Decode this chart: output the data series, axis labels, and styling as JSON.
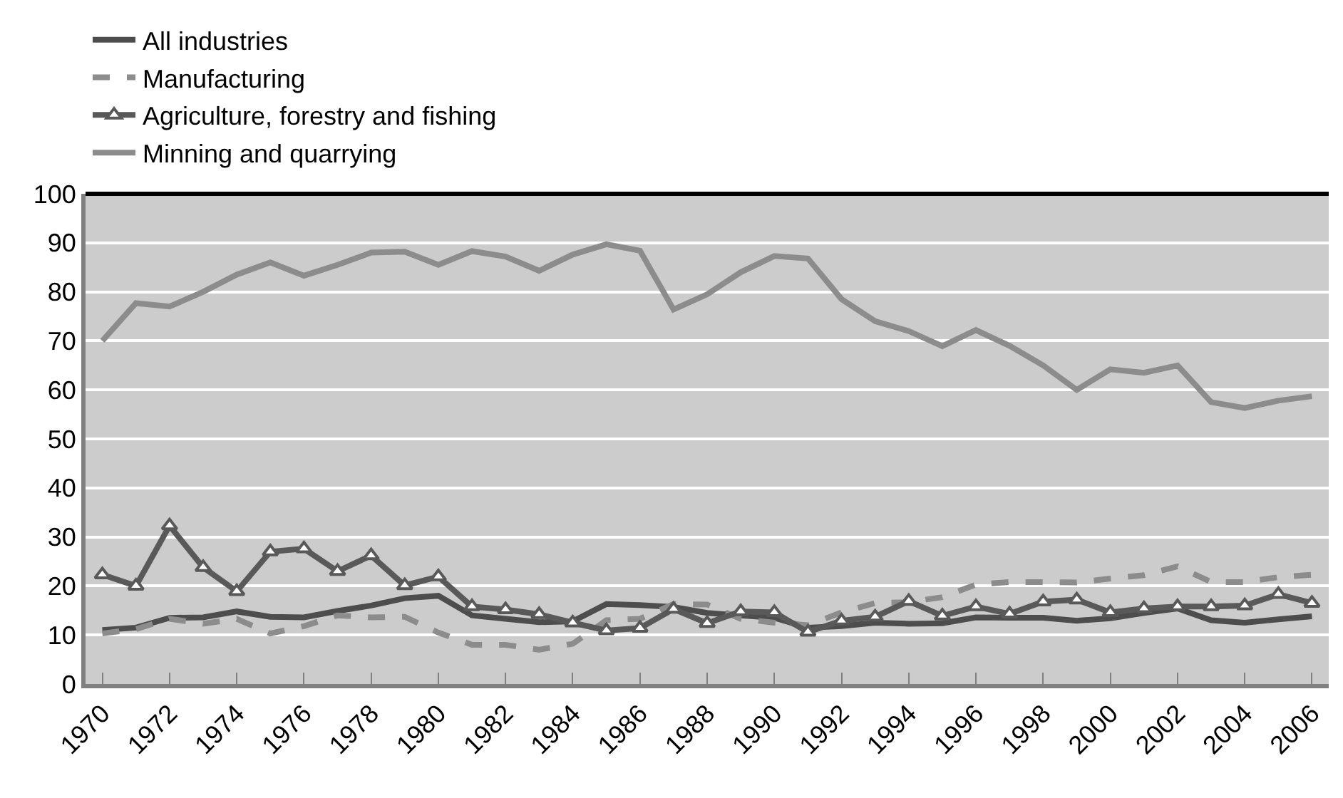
{
  "chart_data": {
    "type": "line",
    "categories": [
      "1970",
      null,
      "1972",
      null,
      "1974",
      null,
      "1976",
      null,
      "1978",
      null,
      "1980",
      null,
      "1982",
      null,
      "1984",
      null,
      "1986",
      null,
      "1988",
      null,
      "1990",
      null,
      "1992",
      null,
      "1994",
      null,
      "1996",
      null,
      "1998",
      null,
      "2000",
      null,
      "2002",
      null,
      "2004",
      null,
      "2006"
    ],
    "series": [
      {
        "name": "All industries",
        "color": "#4d4d4d",
        "line_style": "solid",
        "marker": "none",
        "values": [
          11,
          11.5,
          13.5,
          13.6,
          14.8,
          13.7,
          13.6,
          14.9,
          16.0,
          17.5,
          18,
          14,
          13.3,
          12.6,
          12.8,
          16.3,
          16.1,
          15.7,
          14.5,
          14,
          13.5,
          11.5,
          11.8,
          12.5,
          12.3,
          12.4,
          13.6,
          13.5,
          13.5,
          12.9,
          13.4,
          14.5,
          15.4,
          13,
          12.5,
          13.2,
          13.8
        ]
      },
      {
        "name": "Manufacturing",
        "color": "#8c8c8c",
        "line_style": "dashed",
        "marker": "none",
        "values": [
          10.3,
          11.2,
          13.3,
          12.3,
          13.3,
          10.3,
          11.8,
          14,
          13.6,
          13.7,
          10.5,
          8,
          8,
          7,
          8.2,
          13,
          13.3,
          16.3,
          16.2,
          13.3,
          12.5,
          12,
          14.6,
          16.5,
          16.7,
          17.7,
          20.3,
          20.8,
          20.8,
          20.7,
          21.5,
          22.2,
          24,
          20.8,
          20.8,
          21.8,
          22.3
        ]
      },
      {
        "name": "Agriculture, forestry and fishing",
        "color": "#595959",
        "line_style": "solid",
        "marker": "triangle",
        "values": [
          22.3,
          20,
          32.3,
          23.8,
          18.9,
          27,
          27.6,
          23,
          26.2,
          20.1,
          21.9,
          15.8,
          15.2,
          14.2,
          12.5,
          10.9,
          11.4,
          15.3,
          12.4,
          14.8,
          14.6,
          10.6,
          12.9,
          13.7,
          16.9,
          13.9,
          15.8,
          14.3,
          16.8,
          17.2,
          14.6,
          15.4,
          15.8,
          15.8,
          16,
          18.3,
          16.5
        ]
      },
      {
        "name": "Minning and quarrying",
        "color": "#8c8c8c",
        "line_style": "solid",
        "marker": "none",
        "values": [
          70,
          77.7,
          77,
          80,
          83.5,
          86,
          83.3,
          85.5,
          88,
          88.2,
          85.5,
          88.3,
          87.2,
          84.3,
          87.6,
          89.7,
          88.4,
          76.4,
          79.5,
          84,
          87.3,
          86.8,
          78.5,
          74,
          72,
          68.9,
          72.2,
          69,
          65,
          60,
          64.2,
          63.5,
          65,
          57.5,
          56.3,
          57.8,
          58.7
        ]
      }
    ],
    "ylim": [
      0,
      100
    ],
    "yticks": [
      0,
      10,
      20,
      30,
      40,
      50,
      60,
      70,
      80,
      90,
      100
    ],
    "grid": "y",
    "legend": "top"
  }
}
